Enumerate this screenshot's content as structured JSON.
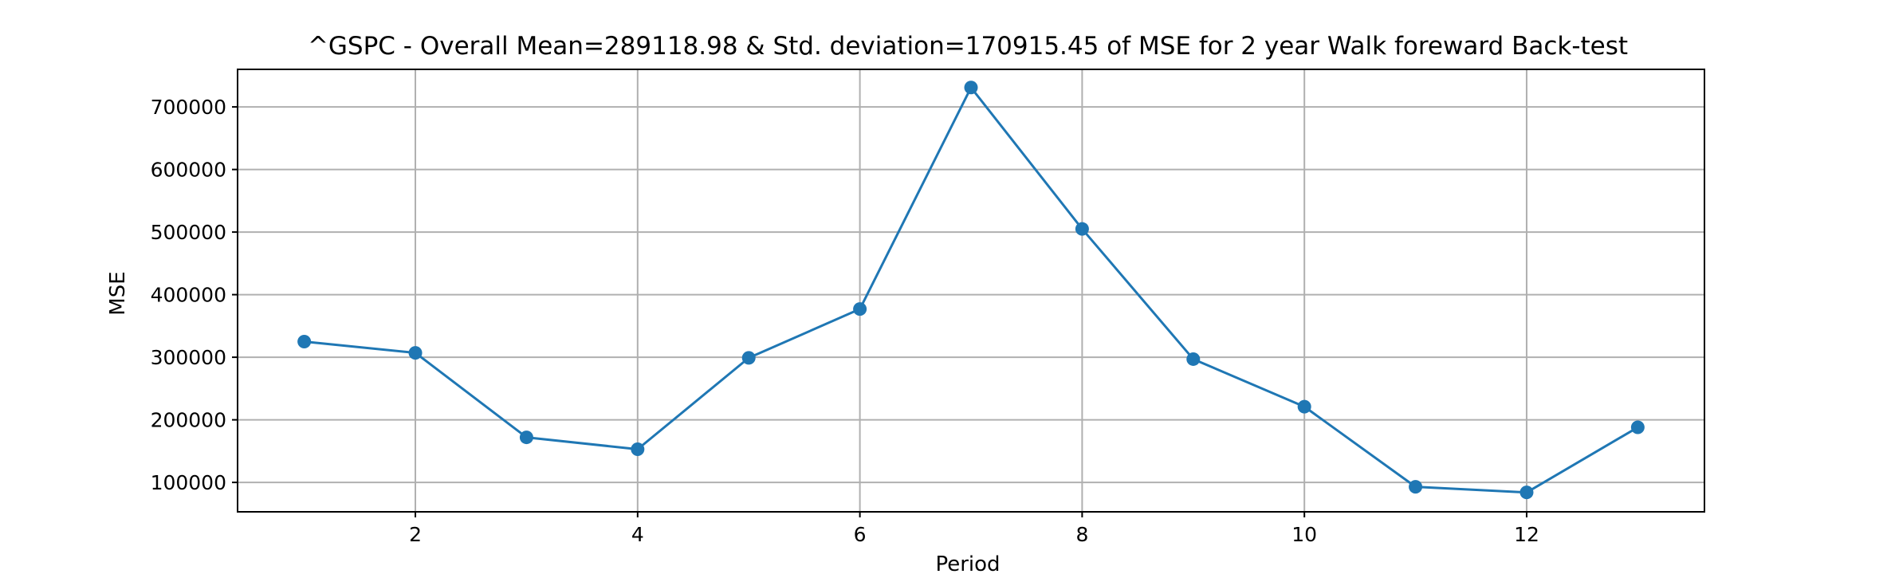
{
  "chart_data": {
    "type": "line",
    "title": "^GSPC - Overall Mean=289118.98 & Std. deviation=170915.45 of MSE for 2 year Walk foreward Back-test",
    "xlabel": "Period",
    "ylabel": "MSE",
    "grid": true,
    "xlim": [
      0.4,
      13.6
    ],
    "ylim": [
      53000,
      760000
    ],
    "xticks": [
      2,
      4,
      6,
      8,
      10,
      12
    ],
    "yticks": [
      100000,
      200000,
      300000,
      400000,
      500000,
      600000,
      700000
    ],
    "colors": {
      "line": "#1f77b4",
      "grid": "#b0b0b0",
      "axes": "#000000"
    },
    "series": [
      {
        "x": [
          1,
          2,
          3,
          4,
          5,
          6,
          7,
          8,
          9,
          10,
          11,
          12,
          13
        ],
        "values": [
          325000,
          307000,
          172000,
          153000,
          299000,
          377000,
          731000,
          505000,
          297000,
          221000,
          93000,
          84000,
          188000
        ]
      }
    ]
  }
}
